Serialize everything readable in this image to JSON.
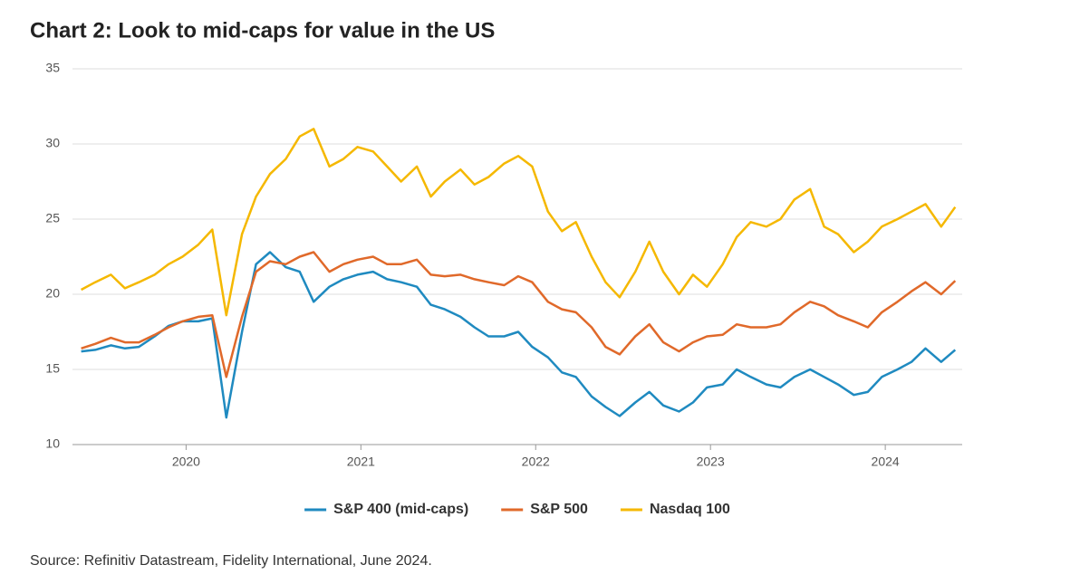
{
  "chart_data": {
    "type": "line",
    "title": "Chart 2: Look to mid-caps for value in the US",
    "source": "Source: Refinitiv Datastream, Fidelity International, June 2024.",
    "x": [
      2019.4,
      2019.48,
      2019.57,
      2019.65,
      2019.73,
      2019.82,
      2019.9,
      2019.98,
      2020.07,
      2020.15,
      2020.23,
      2020.32,
      2020.4,
      2020.48,
      2020.57,
      2020.65,
      2020.73,
      2020.82,
      2020.9,
      2020.98,
      2021.07,
      2021.15,
      2021.23,
      2021.32,
      2021.4,
      2021.48,
      2021.57,
      2021.65,
      2021.73,
      2021.82,
      2021.9,
      2021.98,
      2022.07,
      2022.15,
      2022.23,
      2022.32,
      2022.4,
      2022.48,
      2022.57,
      2022.65,
      2022.73,
      2022.82,
      2022.9,
      2022.98,
      2023.07,
      2023.15,
      2023.23,
      2023.32,
      2023.4,
      2023.48,
      2023.57,
      2023.65,
      2023.73,
      2023.82,
      2023.9,
      2023.98,
      2024.07,
      2024.15,
      2024.23,
      2024.32,
      2024.4
    ],
    "series": [
      {
        "name": "S&P 400 (mid-caps)",
        "color": "#1f8ac0",
        "values": [
          16.2,
          16.3,
          16.6,
          16.4,
          16.5,
          17.2,
          17.9,
          18.2,
          18.2,
          18.4,
          11.8,
          17.5,
          22.0,
          22.8,
          21.8,
          21.5,
          19.5,
          20.5,
          21.0,
          21.3,
          21.5,
          21.0,
          20.8,
          20.5,
          19.3,
          19.0,
          18.5,
          17.8,
          17.2,
          17.2,
          17.5,
          16.5,
          15.8,
          14.8,
          14.5,
          13.2,
          12.5,
          11.9,
          12.8,
          13.5,
          12.6,
          12.2,
          12.8,
          13.8,
          14.0,
          15.0,
          14.5,
          14.0,
          13.8,
          14.5,
          15.0,
          14.5,
          14.0,
          13.3,
          13.5,
          14.5,
          15.0,
          15.5,
          16.4,
          15.5,
          16.3
        ]
      },
      {
        "name": "S&P 500",
        "color": "#e0692a",
        "values": [
          16.4,
          16.7,
          17.1,
          16.8,
          16.8,
          17.3,
          17.8,
          18.2,
          18.5,
          18.6,
          14.5,
          18.5,
          21.5,
          22.2,
          22.0,
          22.5,
          22.8,
          21.5,
          22.0,
          22.3,
          22.5,
          22.0,
          22.0,
          22.3,
          21.3,
          21.2,
          21.3,
          21.0,
          20.8,
          20.6,
          21.2,
          20.8,
          19.5,
          19.0,
          18.8,
          17.8,
          16.5,
          16.0,
          17.2,
          18.0,
          16.8,
          16.2,
          16.8,
          17.2,
          17.3,
          18.0,
          17.8,
          17.8,
          18.0,
          18.8,
          19.5,
          19.2,
          18.6,
          18.2,
          17.8,
          18.8,
          19.5,
          20.2,
          20.8,
          20.0,
          20.9
        ]
      },
      {
        "name": "Nasdaq 100",
        "color": "#f5b800",
        "values": [
          20.3,
          20.8,
          21.3,
          20.4,
          20.8,
          21.3,
          22.0,
          22.5,
          23.3,
          24.3,
          18.6,
          24.0,
          26.5,
          28.0,
          29.0,
          30.5,
          31.0,
          28.5,
          29.0,
          29.8,
          29.5,
          28.5,
          27.5,
          28.5,
          26.5,
          27.5,
          28.3,
          27.3,
          27.8,
          28.7,
          29.2,
          28.5,
          25.5,
          24.2,
          24.8,
          22.5,
          20.8,
          19.8,
          21.5,
          23.5,
          21.5,
          20.0,
          21.3,
          20.5,
          22.0,
          23.8,
          24.8,
          24.5,
          25.0,
          26.3,
          27.0,
          24.5,
          24.0,
          22.8,
          23.5,
          24.5,
          25.0,
          25.5,
          26.0,
          24.5,
          25.8
        ]
      }
    ],
    "xlim": [
      2019.35,
      2024.44
    ],
    "xticks": [
      2020,
      2021,
      2022,
      2023,
      2024
    ],
    "ylim": [
      10,
      35
    ],
    "yticks": [
      10,
      15,
      20,
      25,
      30,
      35
    ],
    "grid": true,
    "legend": "bottom"
  }
}
